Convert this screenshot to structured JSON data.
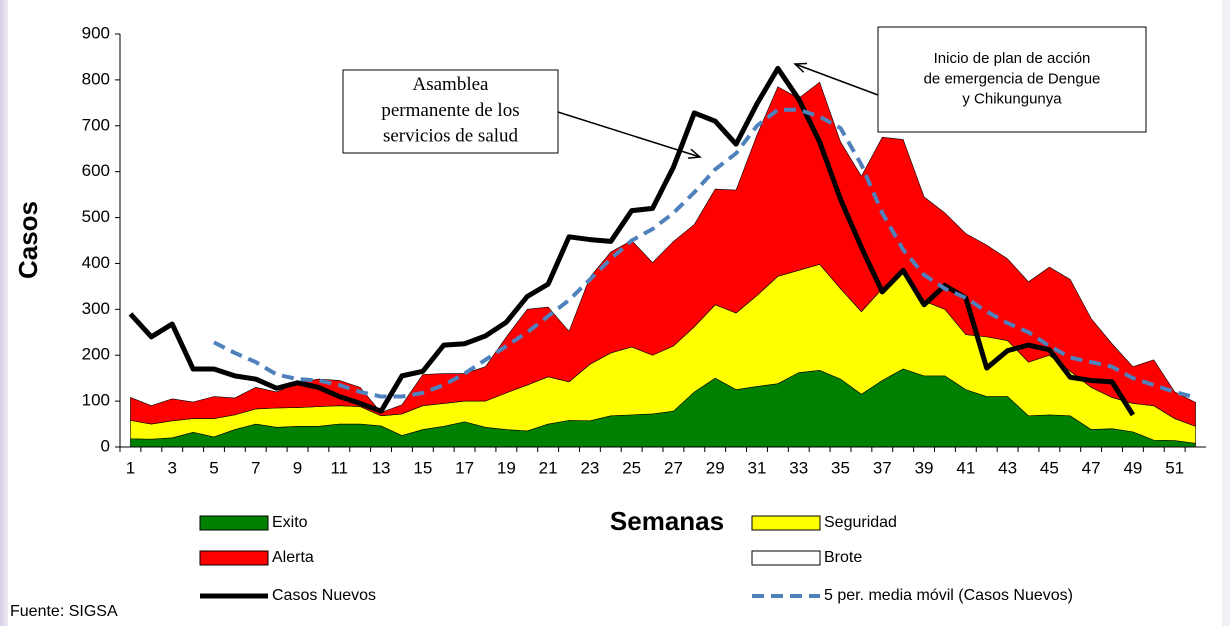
{
  "chart_data": {
    "type": "area",
    "y_label": "Casos",
    "x_label": "Semanas",
    "source": "Fuente: SIGSA",
    "categories": [
      "1",
      null,
      "3",
      null,
      "5",
      null,
      "7",
      null,
      "9",
      null,
      "11",
      null,
      "13",
      null,
      "15",
      null,
      "17",
      null,
      "19",
      null,
      "21",
      null,
      "23",
      null,
      "25",
      null,
      "27",
      null,
      "29",
      null,
      "31",
      null,
      "33",
      null,
      "35",
      null,
      "37",
      null,
      "39",
      null,
      "41",
      null,
      "43",
      null,
      "45",
      null,
      "47",
      null,
      "49",
      null,
      "51",
      null
    ],
    "ylim": [
      0,
      900
    ],
    "yticks": [
      0,
      100,
      200,
      300,
      400,
      500,
      600,
      700,
      800,
      900
    ],
    "series": [
      {
        "name": "Exito",
        "type": "area",
        "color": "#008000",
        "values": [
          18,
          17,
          20,
          32,
          22,
          38,
          50,
          43,
          45,
          45,
          50,
          50,
          46,
          25,
          38,
          45,
          55,
          43,
          38,
          35,
          50,
          58,
          57,
          68,
          70,
          72,
          78,
          120,
          150,
          125,
          132,
          138,
          162,
          167,
          148,
          115,
          145,
          170,
          155,
          155,
          125,
          110,
          110,
          68,
          70,
          68,
          38,
          40,
          33,
          15,
          14,
          8
        ]
      },
      {
        "name": "Seguridad",
        "type": "area",
        "color": "#ffff00",
        "values": [
          40,
          33,
          37,
          30,
          40,
          32,
          33,
          42,
          41,
          43,
          40,
          38,
          22,
          47,
          52,
          50,
          45,
          57,
          80,
          100,
          103,
          84,
          123,
          137,
          148,
          128,
          142,
          142,
          160,
          167,
          198,
          234,
          223,
          231,
          197,
          180,
          200,
          210,
          163,
          145,
          120,
          130,
          122,
          117,
          130,
          97,
          92,
          68,
          62,
          75,
          48,
          37
        ]
      },
      {
        "name": "Alerta",
        "type": "area",
        "color": "#ff0000",
        "values": [
          50,
          40,
          48,
          36,
          48,
          37,
          47,
          35,
          54,
          60,
          55,
          42,
          7,
          20,
          68,
          65,
          60,
          75,
          122,
          165,
          152,
          110,
          190,
          220,
          232,
          202,
          228,
          223,
          252,
          268,
          350,
          413,
          375,
          397,
          320,
          295,
          330,
          290,
          227,
          210,
          220,
          200,
          178,
          175,
          192,
          200,
          150,
          117,
          80,
          100,
          58,
          52
        ]
      },
      {
        "name": "Brote",
        "type": "area",
        "color": "#ffffff"
      },
      {
        "name": "Casos Nuevos",
        "type": "line",
        "color": "#000000",
        "values": [
          290,
          240,
          268,
          170,
          170,
          155,
          148,
          128,
          140,
          130,
          110,
          95,
          78,
          155,
          165,
          222,
          225,
          242,
          272,
          328,
          355,
          458,
          452,
          448,
          515,
          520,
          610,
          728,
          710,
          660,
          748,
          825,
          758,
          665,
          540,
          435,
          338,
          385,
          310,
          352,
          325,
          172,
          210,
          222,
          212,
          152,
          145,
          142,
          70,
          null,
          null,
          null
        ]
      },
      {
        "name": "5 per. media móvil (Casos Nuevos)",
        "type": "line",
        "dashed": true,
        "color": "#4f81bd",
        "values": [
          null,
          null,
          null,
          null,
          228,
          205,
          185,
          158,
          148,
          145,
          135,
          120,
          110,
          110,
          118,
          135,
          160,
          190,
          220,
          250,
          285,
          320,
          365,
          410,
          450,
          475,
          510,
          555,
          605,
          640,
          700,
          735,
          735,
          720,
          695,
          615,
          510,
          430,
          375,
          345,
          325,
          295,
          270,
          250,
          220,
          195,
          185,
          175,
          150,
          135,
          120,
          108
        ]
      }
    ],
    "annotations": [
      {
        "lines": [
          "Asamblea",
          "permanente de los",
          "servicios de salud"
        ]
      },
      {
        "lines": [
          "Inicio de plan de acción",
          "de emergencia de Dengue",
          "y Chikungunya"
        ]
      }
    ]
  }
}
